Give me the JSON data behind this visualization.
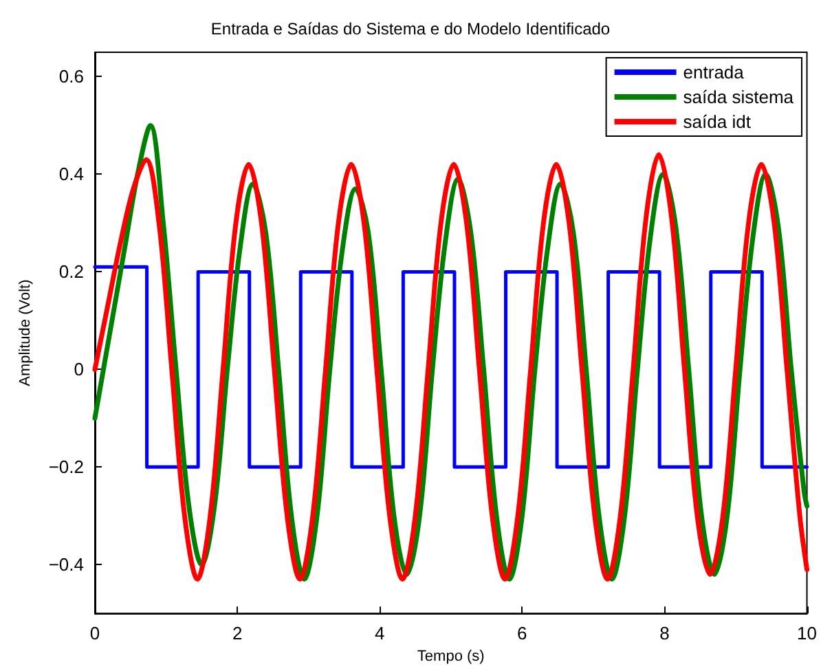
{
  "chart_data": {
    "type": "line",
    "title": "Entrada e Saídas do Sistema e do Modelo Identificado",
    "xlabel": "Tempo (s)",
    "ylabel": "Amplitude (Volt)",
    "xlim": [
      0,
      10
    ],
    "xticks": [
      0,
      2,
      4,
      6,
      8,
      10
    ],
    "ylim": [
      -0.5,
      0.65
    ],
    "yticks": [
      {
        "value": -0.4,
        "label": "−0.4"
      },
      {
        "value": -0.2,
        "label": "−0.2"
      },
      0,
      0.2,
      0.4,
      0.6
    ],
    "legend": "top right",
    "series": [
      {
        "name": "entrada",
        "type": "step",
        "color": "#0000ff",
        "x": [
          0,
          0.73,
          1.45,
          2.17,
          2.89,
          3.61,
          4.33,
          5.05,
          5.77,
          6.49,
          7.21,
          7.93,
          8.65,
          9.37,
          10
        ],
        "values": [
          0.21,
          -0.2,
          0.2,
          -0.2,
          0.2,
          -0.2,
          0.2,
          -0.2,
          0.2,
          -0.2,
          0.2,
          -0.2,
          0.2,
          -0.2,
          -0.2
        ]
      },
      {
        "name": "saída sistema",
        "color": "#008000",
        "x": [
          0,
          0.24,
          0.42,
          0.6,
          0.78,
          0.96,
          1.14,
          1.32,
          1.5,
          1.68,
          1.86,
          2.04,
          2.22,
          2.4,
          2.58,
          2.76,
          2.94,
          3.12,
          3.3,
          3.48,
          3.66,
          3.84,
          4.02,
          4.2,
          4.38,
          4.56,
          4.74,
          4.92,
          5.1,
          5.28,
          5.46,
          5.64,
          5.82,
          6.0,
          6.18,
          6.36,
          6.54,
          6.72,
          6.9,
          7.08,
          7.26,
          7.44,
          7.62,
          7.8,
          7.98,
          8.16,
          8.34,
          8.52,
          8.7,
          8.88,
          9.06,
          9.24,
          9.42,
          9.6,
          9.78,
          9.96,
          10
        ],
        "values": [
          -0.1,
          0.1,
          0.25,
          0.4,
          0.5,
          0.3,
          0,
          -0.28,
          -0.4,
          -0.28,
          0,
          0.25,
          0.38,
          0.28,
          0,
          -0.3,
          -0.43,
          -0.3,
          0,
          0.25,
          0.37,
          0.28,
          0,
          -0.3,
          -0.42,
          -0.3,
          0,
          0.26,
          0.39,
          0.28,
          0,
          -0.3,
          -0.43,
          -0.3,
          0,
          0.25,
          0.38,
          0.28,
          0,
          -0.3,
          -0.43,
          -0.3,
          0,
          0.27,
          0.4,
          0.29,
          0,
          -0.3,
          -0.42,
          -0.3,
          0,
          0.27,
          0.4,
          0.29,
          0,
          -0.25,
          -0.28
        ]
      },
      {
        "name": "saída idt",
        "color": "#ff0000",
        "x": [
          0,
          0.18,
          0.36,
          0.54,
          0.72,
          0.9,
          1.08,
          1.26,
          1.44,
          1.62,
          1.8,
          1.98,
          2.16,
          2.34,
          2.52,
          2.7,
          2.88,
          3.06,
          3.24,
          3.42,
          3.6,
          3.78,
          3.96,
          4.14,
          4.32,
          4.5,
          4.68,
          4.86,
          5.04,
          5.22,
          5.4,
          5.58,
          5.76,
          5.94,
          6.12,
          6.3,
          6.48,
          6.66,
          6.84,
          7.02,
          7.2,
          7.38,
          7.56,
          7.74,
          7.92,
          8.1,
          8.28,
          8.46,
          8.64,
          8.82,
          9.0,
          9.18,
          9.36,
          9.54,
          9.72,
          9.9,
          10
        ],
        "values": [
          0,
          0.13,
          0.26,
          0.37,
          0.43,
          0.3,
          0,
          -0.3,
          -0.43,
          -0.3,
          0,
          0.3,
          0.42,
          0.3,
          0,
          -0.3,
          -0.43,
          -0.3,
          0,
          0.3,
          0.42,
          0.3,
          0,
          -0.3,
          -0.43,
          -0.3,
          0,
          0.3,
          0.42,
          0.3,
          0,
          -0.3,
          -0.43,
          -0.3,
          0,
          0.3,
          0.42,
          0.3,
          0,
          -0.3,
          -0.43,
          -0.3,
          0,
          0.31,
          0.44,
          0.31,
          0,
          -0.3,
          -0.42,
          -0.3,
          0,
          0.3,
          0.42,
          0.3,
          0,
          -0.3,
          -0.41
        ]
      }
    ]
  }
}
